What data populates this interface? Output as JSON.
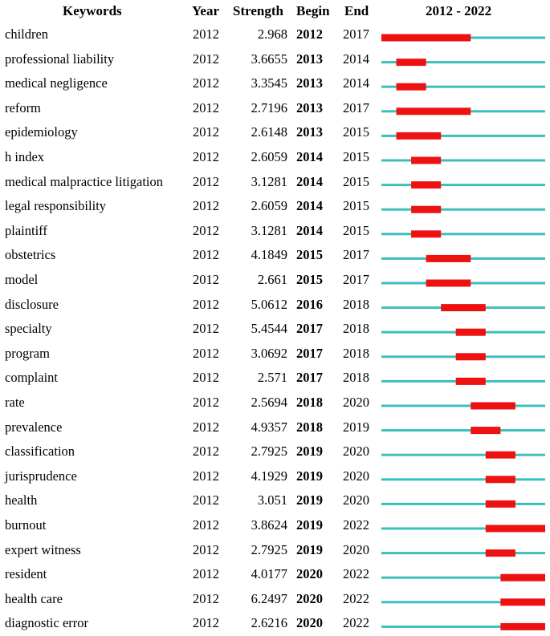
{
  "headers": {
    "keyword": "Keywords",
    "year": "Year",
    "strength": "Strength",
    "begin": "Begin",
    "end": "End",
    "range": "2012 - 2022"
  },
  "colors": {
    "baseline": "#3cbfbd",
    "burst": "#ee1111"
  },
  "chart_data": {
    "type": "table",
    "timeline_start": 2012,
    "timeline_end": 2022,
    "rows": [
      {
        "keyword": "children",
        "year": "2012",
        "strength": "2.968",
        "begin": "2012",
        "end": "2017"
      },
      {
        "keyword": "professional liability",
        "year": "2012",
        "strength": "3.6655",
        "begin": "2013",
        "end": "2014"
      },
      {
        "keyword": "medical negligence",
        "year": "2012",
        "strength": "3.3545",
        "begin": "2013",
        "end": "2014"
      },
      {
        "keyword": "reform",
        "year": "2012",
        "strength": "2.7196",
        "begin": "2013",
        "end": "2017"
      },
      {
        "keyword": "epidemiology",
        "year": "2012",
        "strength": "2.6148",
        "begin": "2013",
        "end": "2015"
      },
      {
        "keyword": "h index",
        "year": "2012",
        "strength": "2.6059",
        "begin": "2014",
        "end": "2015"
      },
      {
        "keyword": "medical malpractice litigation",
        "year": "2012",
        "strength": "3.1281",
        "begin": "2014",
        "end": "2015"
      },
      {
        "keyword": "legal responsibility",
        "year": "2012",
        "strength": "2.6059",
        "begin": "2014",
        "end": "2015"
      },
      {
        "keyword": "plaintiff",
        "year": "2012",
        "strength": "3.1281",
        "begin": "2014",
        "end": "2015"
      },
      {
        "keyword": "obstetrics",
        "year": "2012",
        "strength": "4.1849",
        "begin": "2015",
        "end": "2017"
      },
      {
        "keyword": "model",
        "year": "2012",
        "strength": "2.661",
        "begin": "2015",
        "end": "2017"
      },
      {
        "keyword": "disclosure",
        "year": "2012",
        "strength": "5.0612",
        "begin": "2016",
        "end": "2018"
      },
      {
        "keyword": "specialty",
        "year": "2012",
        "strength": "5.4544",
        "begin": "2017",
        "end": "2018"
      },
      {
        "keyword": "program",
        "year": "2012",
        "strength": "3.0692",
        "begin": "2017",
        "end": "2018"
      },
      {
        "keyword": "complaint",
        "year": "2012",
        "strength": "2.571",
        "begin": "2017",
        "end": "2018"
      },
      {
        "keyword": "rate",
        "year": "2012",
        "strength": "2.5694",
        "begin": "2018",
        "end": "2020"
      },
      {
        "keyword": "prevalence",
        "year": "2012",
        "strength": "4.9357",
        "begin": "2018",
        "end": "2019"
      },
      {
        "keyword": "classification",
        "year": "2012",
        "strength": "2.7925",
        "begin": "2019",
        "end": "2020"
      },
      {
        "keyword": "jurisprudence",
        "year": "2012",
        "strength": "4.1929",
        "begin": "2019",
        "end": "2020"
      },
      {
        "keyword": "health",
        "year": "2012",
        "strength": "3.051",
        "begin": "2019",
        "end": "2020"
      },
      {
        "keyword": "burnout",
        "year": "2012",
        "strength": "3.8624",
        "begin": "2019",
        "end": "2022"
      },
      {
        "keyword": "expert witness",
        "year": "2012",
        "strength": "2.7925",
        "begin": "2019",
        "end": "2020"
      },
      {
        "keyword": "resident",
        "year": "2012",
        "strength": "4.0177",
        "begin": "2020",
        "end": "2022"
      },
      {
        "keyword": "health care",
        "year": "2012",
        "strength": "6.2497",
        "begin": "2020",
        "end": "2022"
      },
      {
        "keyword": "diagnostic error",
        "year": "2012",
        "strength": "2.6216",
        "begin": "2020",
        "end": "2022"
      }
    ]
  }
}
